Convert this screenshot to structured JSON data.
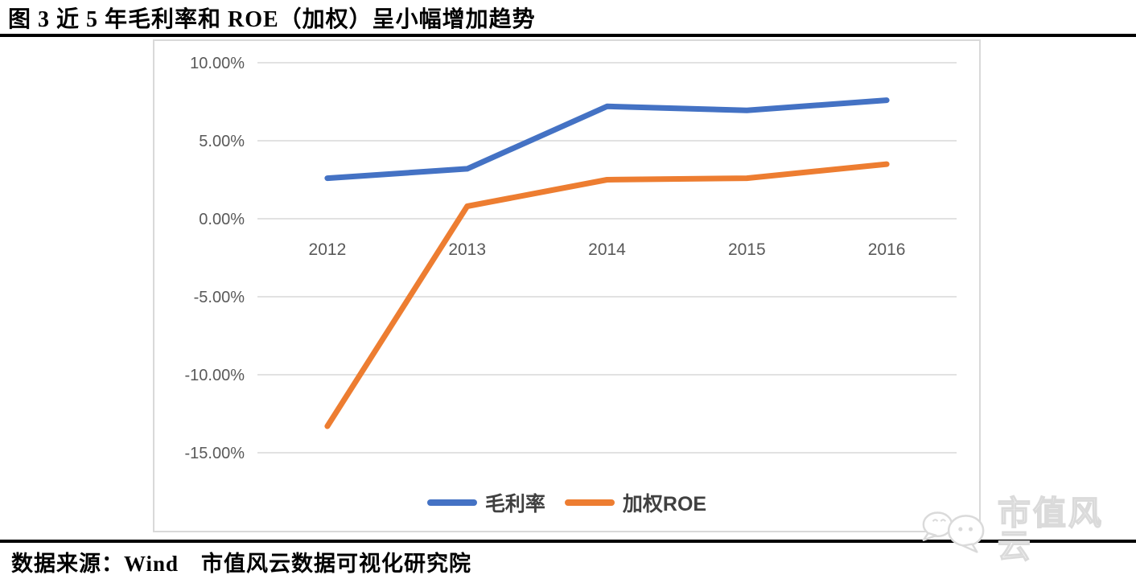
{
  "page": {
    "title": "图 3 近 5 年毛利率和 ROE（加权）呈小幅增加趋势",
    "source_line": "数据来源：Wind　市值风云数据可视化研究院",
    "watermark_text": "市值风云"
  },
  "chart_data": {
    "type": "line",
    "title": "图 3 近 5 年毛利率和 ROE（加权）呈小幅增加趋势",
    "categories": [
      "2012",
      "2013",
      "2014",
      "2015",
      "2016"
    ],
    "series": [
      {
        "name": "毛利率",
        "color": "#4472C4",
        "values": [
          2.6,
          3.2,
          7.2,
          6.95,
          7.6
        ]
      },
      {
        "name": "加权ROE",
        "color": "#ED7D31",
        "values": [
          -13.3,
          0.8,
          2.5,
          2.6,
          3.5
        ]
      }
    ],
    "unit": "%",
    "y_ticks": [
      10,
      5,
      0,
      -5,
      -10,
      -15
    ],
    "y_tick_labels": [
      "10.00%",
      "5.00%",
      "0.00%",
      "-5.00%",
      "-10.00%",
      "-15.00%"
    ],
    "ylim": [
      -16.5,
      11.5
    ],
    "grid": true,
    "gridline_color": "#d9d9d9",
    "tick_label_color": "#595959",
    "legend_position": "bottom"
  }
}
